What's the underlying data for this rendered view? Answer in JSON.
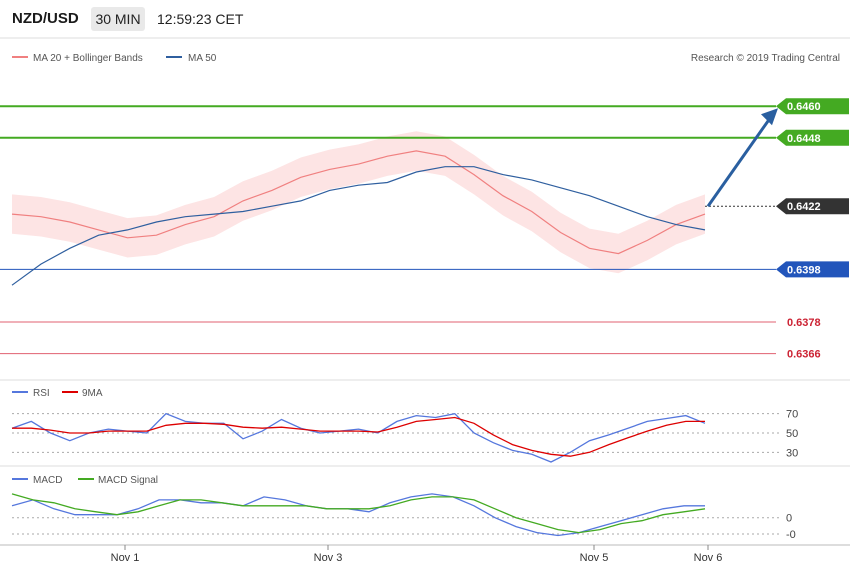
{
  "header": {
    "pair": "NZD/USD",
    "timeframe": "30 MIN",
    "time": "12:59:23 CET"
  },
  "legend": {
    "main": [
      {
        "name": "MA 20 + Bollinger Bands",
        "color": "#f08080"
      },
      {
        "name": "MA 50",
        "color": "#2f5f9f"
      }
    ],
    "rsi": [
      {
        "name": "RSI",
        "color": "#5577dd"
      },
      {
        "name": "9MA",
        "color": "#dd0000"
      }
    ],
    "macd": [
      {
        "name": "MACD",
        "color": "#5577dd"
      },
      {
        "name": "MACD Signal",
        "color": "#44aa22"
      }
    ]
  },
  "copyright": "Research © 2019 Trading Central",
  "colors": {
    "up": "#2e8b57",
    "down": "#cc0000",
    "resistance": "#44aa22",
    "support_blue": "#2255bb",
    "support_red": "#e06070",
    "arrow": "#2a5fa0",
    "band_fill": "#fde4e4"
  },
  "chart_data": [
    {
      "type": "line",
      "title": "NZD/USD 30 MIN",
      "ylim": [
        0.6359,
        0.6473
      ],
      "price_levels": [
        {
          "value": "0.6460",
          "kind": "resistance"
        },
        {
          "value": "0.6448",
          "kind": "resistance"
        },
        {
          "value": "0.6422",
          "kind": "current"
        },
        {
          "value": "0.6398",
          "kind": "support"
        },
        {
          "value": "0.6378",
          "kind": "support"
        },
        {
          "value": "0.6366",
          "kind": "support"
        }
      ],
      "x_tick_labels": [
        "Nov 1",
        "Nov 3",
        "Nov 5",
        "Nov 6"
      ],
      "series": [
        {
          "name": "MA 20 + Bollinger Bands",
          "values": [
            0.6419,
            0.6418,
            0.6416,
            0.6413,
            0.641,
            0.6411,
            0.6415,
            0.6418,
            0.6424,
            0.6428,
            0.6433,
            0.6436,
            0.6438,
            0.6441,
            0.6443,
            0.6441,
            0.6434,
            0.6426,
            0.642,
            0.6412,
            0.6406,
            0.6404,
            0.6409,
            0.6415,
            0.6419
          ]
        },
        {
          "name": "MA 50",
          "values": [
            0.6392,
            0.64,
            0.6406,
            0.6411,
            0.6413,
            0.6416,
            0.6418,
            0.6419,
            0.642,
            0.6422,
            0.6424,
            0.6428,
            0.643,
            0.6431,
            0.6435,
            0.6437,
            0.6437,
            0.6434,
            0.6432,
            0.6429,
            0.6426,
            0.6422,
            0.6418,
            0.6415,
            0.6413
          ]
        }
      ],
      "projection": {
        "from": 0.6422,
        "to": 0.646
      }
    },
    {
      "type": "line",
      "title": "RSI",
      "ylim": [
        20,
        80
      ],
      "y_tick_labels": [
        "70",
        "50",
        "30"
      ],
      "series": [
        {
          "name": "RSI",
          "values": [
            55,
            62,
            50,
            42,
            50,
            54,
            52,
            50,
            70,
            62,
            60,
            60,
            44,
            52,
            64,
            55,
            50,
            52,
            54,
            50,
            62,
            68,
            66,
            70,
            50,
            40,
            32,
            28,
            20,
            30,
            42,
            48,
            55,
            62,
            65,
            68,
            60
          ]
        },
        {
          "name": "9MA",
          "values": [
            55,
            55,
            53,
            50,
            50,
            52,
            52,
            52,
            58,
            60,
            60,
            59,
            56,
            55,
            56,
            54,
            52,
            52,
            52,
            51,
            56,
            62,
            64,
            66,
            60,
            48,
            38,
            32,
            28,
            26,
            30,
            38,
            45,
            52,
            58,
            62,
            62
          ]
        }
      ]
    },
    {
      "type": "line",
      "title": "MACD",
      "ylim": [
        -0.00075,
        0.0011
      ],
      "y_tick_labels": [
        "0",
        "-0"
      ],
      "series": [
        {
          "name": "MACD",
          "values": [
            0.0004,
            0.0006,
            0.0003,
            0.0001,
            0.0001,
            0.0001,
            0.0003,
            0.0006,
            0.0006,
            0.0005,
            0.0005,
            0.0004,
            0.0007,
            0.0006,
            0.0004,
            0.0003,
            0.0003,
            0.0002,
            0.0005,
            0.0007,
            0.0008,
            0.0007,
            0.0004,
            0.0,
            -0.0003,
            -0.0005,
            -0.0006,
            -0.0005,
            -0.0003,
            -0.0001,
            0.0001,
            0.0003,
            0.0004,
            0.0004
          ]
        },
        {
          "name": "MACD Signal",
          "values": [
            0.0008,
            0.0006,
            0.0005,
            0.0003,
            0.0002,
            0.0001,
            0.0002,
            0.0004,
            0.0006,
            0.0006,
            0.0005,
            0.0004,
            0.0004,
            0.0004,
            0.0004,
            0.0003,
            0.0003,
            0.0003,
            0.0004,
            0.0006,
            0.0007,
            0.0007,
            0.0006,
            0.0003,
            0.0,
            -0.0002,
            -0.0004,
            -0.0005,
            -0.0004,
            -0.0002,
            -0.0001,
            0.0001,
            0.0002,
            0.0003
          ]
        }
      ]
    }
  ]
}
